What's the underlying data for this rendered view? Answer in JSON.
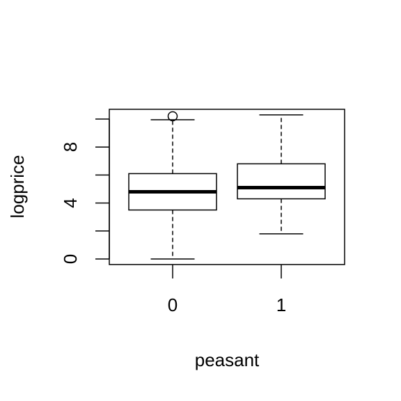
{
  "chart_data": {
    "type": "boxplot",
    "title": "",
    "xlabel": "peasant",
    "ylabel": "logprice",
    "categories": [
      "0",
      "1"
    ],
    "yticks": [
      0,
      2,
      4,
      6,
      8,
      10
    ],
    "ytick_labels": [
      "0",
      "",
      "4",
      "",
      "8",
      ""
    ],
    "ylim": [
      -0.4,
      10.7
    ],
    "grid": false,
    "legend": "none",
    "boxes": [
      {
        "category": "0",
        "whisker_low": 0.0,
        "q1": 3.5,
        "median": 4.8,
        "q3": 6.1,
        "whisker_high": 9.95,
        "outliers": [
          10.2
        ]
      },
      {
        "category": "1",
        "whisker_low": 1.8,
        "q1": 4.3,
        "median": 5.1,
        "q3": 6.8,
        "whisker_high": 10.3,
        "outliers": []
      }
    ]
  }
}
